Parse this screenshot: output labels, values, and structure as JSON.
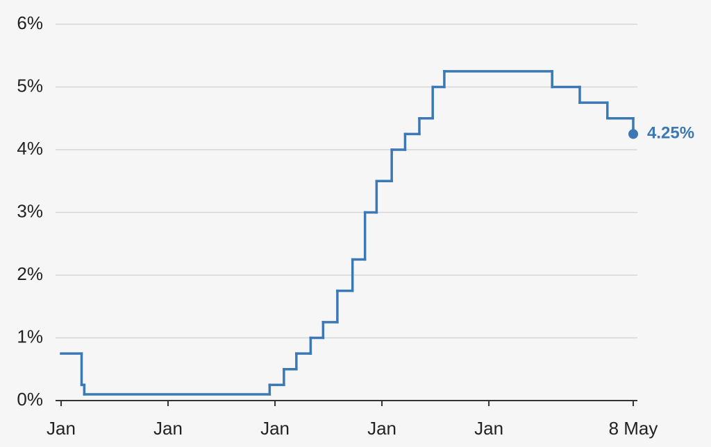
{
  "chart_data": {
    "type": "step",
    "x": [
      0,
      2.3,
      2.6,
      23.4,
      25.0,
      26.4,
      28.0,
      29.4,
      31.0,
      32.7,
      34.1,
      35.4,
      37.1,
      38.6,
      40.2,
      41.7,
      43.0,
      55.1,
      58.2,
      61.3,
      64.2
    ],
    "values": [
      0.75,
      0.25,
      0.1,
      0.25,
      0.5,
      0.75,
      1.0,
      1.25,
      1.75,
      2.25,
      3.0,
      3.5,
      4.0,
      4.25,
      4.5,
      5.0,
      5.25,
      5.0,
      4.75,
      4.5,
      4.25
    ],
    "value_labels": [
      null,
      null,
      null,
      null,
      null,
      null,
      null,
      null,
      null,
      null,
      null,
      null,
      null,
      null,
      null,
      null,
      null,
      null,
      null,
      null,
      "4.25%"
    ],
    "color": "#3c78b4",
    "xlim": [
      0,
      64.2
    ],
    "xticks": [
      {
        "value": 0,
        "label": "Jan"
      },
      {
        "value": 12,
        "label": "Jan"
      },
      {
        "value": 24,
        "label": "Jan"
      },
      {
        "value": 36,
        "label": "Jan"
      },
      {
        "value": 48,
        "label": "Jan"
      },
      {
        "value": 64.2,
        "label": "8 May"
      }
    ],
    "ylim": [
      0,
      6
    ],
    "yticks": [
      {
        "value": 0,
        "label": "0%"
      },
      {
        "value": 1,
        "label": "1%"
      },
      {
        "value": 2,
        "label": "2%"
      },
      {
        "value": 3,
        "label": "3%"
      },
      {
        "value": 4,
        "label": "4%"
      },
      {
        "value": 5,
        "label": "5%"
      },
      {
        "value": 6,
        "label": "6%"
      }
    ],
    "grid": true
  }
}
